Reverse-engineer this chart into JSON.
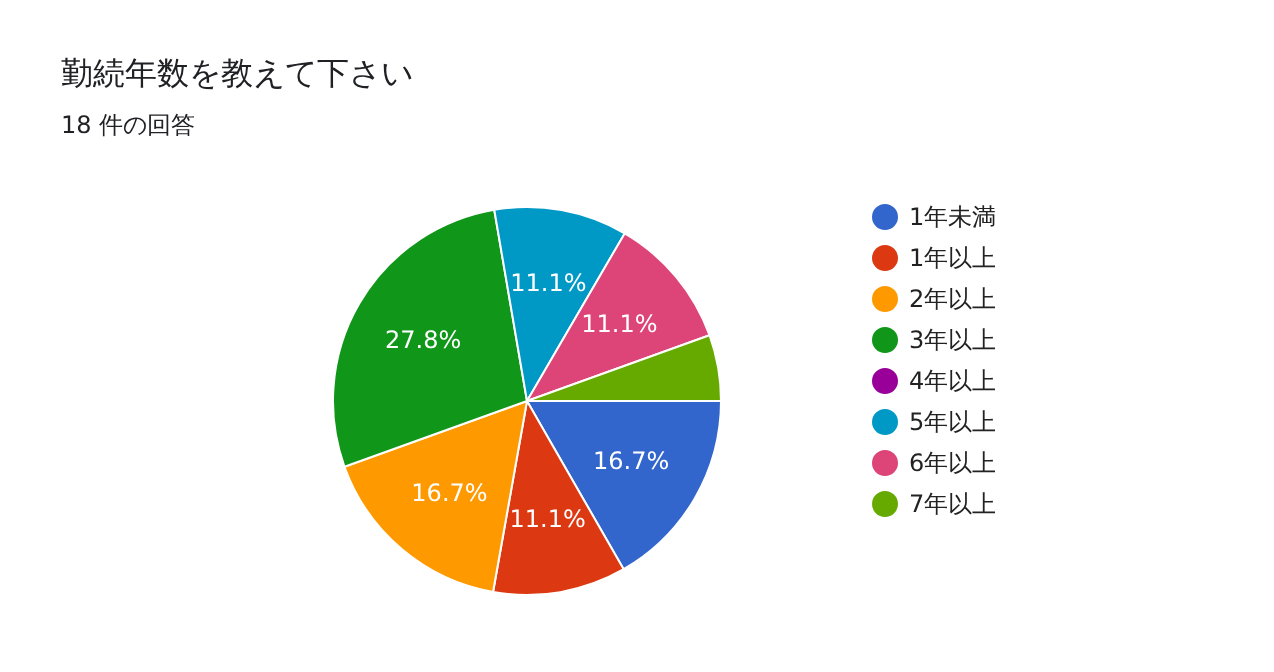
{
  "chart_data": {
    "type": "pie",
    "title": "勤続年数を教えて下さい",
    "subtitle": "18 件の回答",
    "categories": [
      "1年未満",
      "1年以上",
      "2年以上",
      "3年以上",
      "4年以上",
      "5年以上",
      "6年以上",
      "7年以上"
    ],
    "values": [
      16.7,
      11.1,
      16.7,
      27.8,
      0,
      11.1,
      11.1,
      5.5
    ],
    "colors": [
      "#3366cc",
      "#dc3912",
      "#ff9900",
      "#109618",
      "#990099",
      "#0099c6",
      "#dd4477",
      "#66aa00"
    ],
    "value_labels": [
      "16.7%",
      "11.1%",
      "16.7%",
      "27.8%",
      null,
      "11.1%",
      "11.1%",
      null
    ],
    "legend": "right"
  }
}
